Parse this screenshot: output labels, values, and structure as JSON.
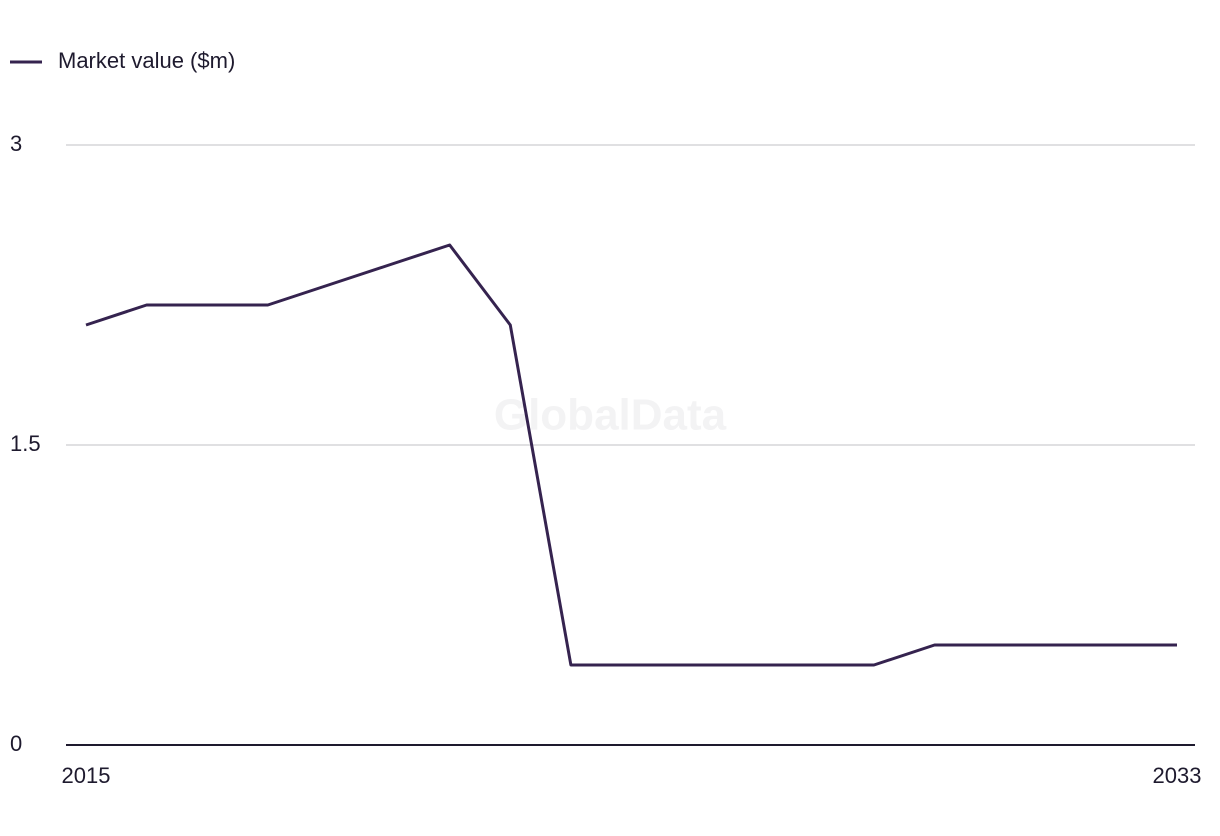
{
  "chart_data": {
    "type": "line",
    "legend": "top-left",
    "watermark": "GlobalData",
    "x": [
      2015,
      2016,
      2017,
      2018,
      2019,
      2020,
      2021,
      2022,
      2023,
      2024,
      2025,
      2026,
      2027,
      2028,
      2029,
      2030,
      2031,
      2032,
      2033
    ],
    "series": [
      {
        "name": "Market value ($m)",
        "color": "#35234f",
        "values": [
          2.1,
          2.2,
          2.2,
          2.2,
          2.3,
          2.4,
          2.5,
          2.1,
          0.4,
          0.4,
          0.4,
          0.4,
          0.4,
          0.4,
          0.5,
          0.5,
          0.5,
          0.5,
          0.5
        ]
      }
    ],
    "xlim": [
      2015,
      2033
    ],
    "xticks": [
      2015,
      2033
    ],
    "ylim": [
      0,
      3
    ],
    "yticks": [
      0,
      1.5,
      3
    ],
    "grid": true
  }
}
